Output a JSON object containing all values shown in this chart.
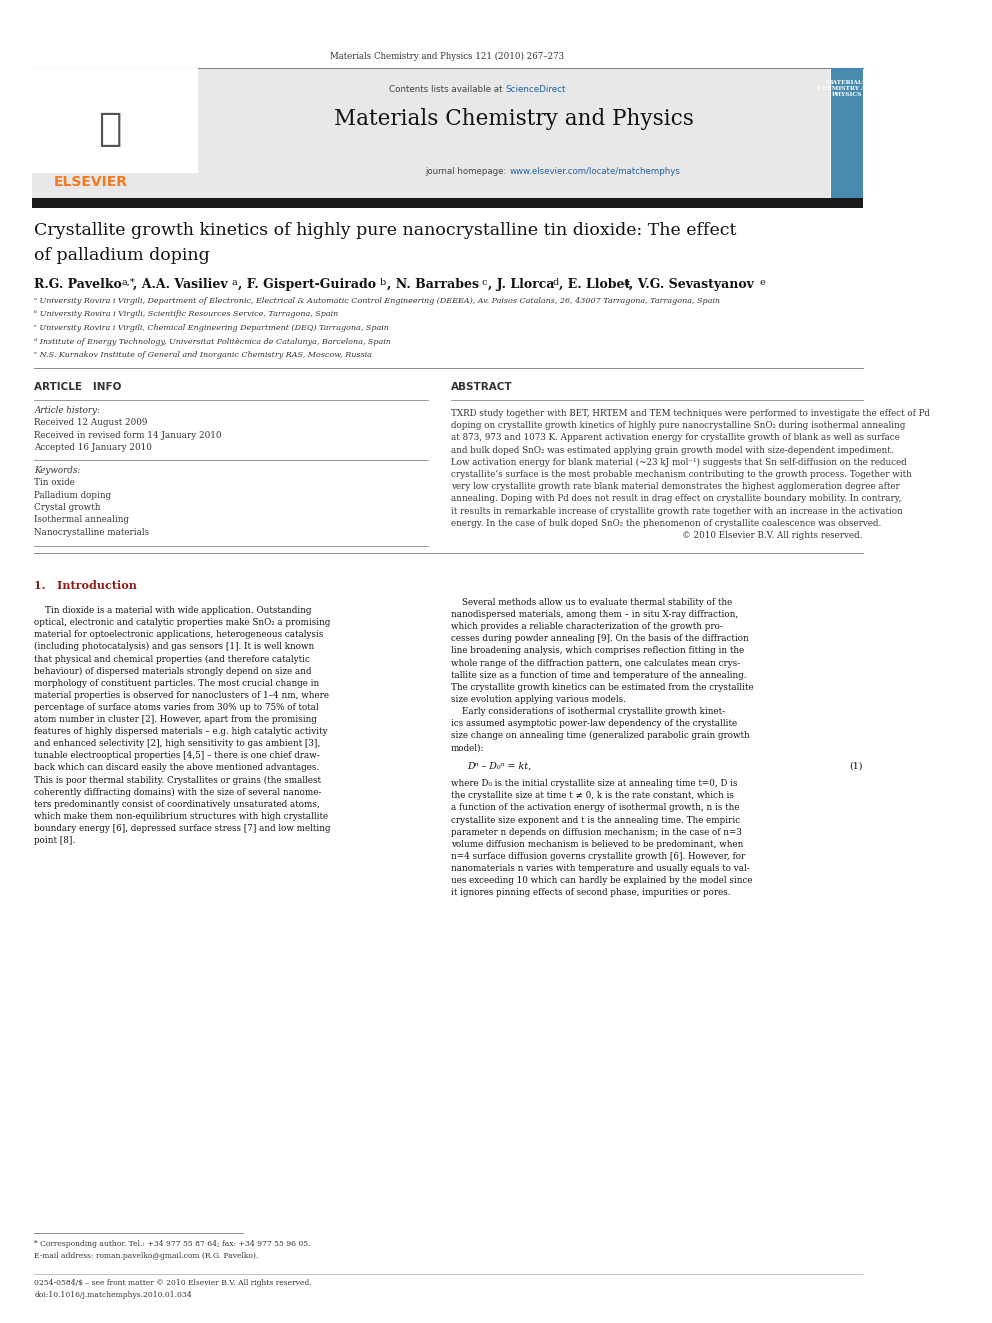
{
  "page_width": 9.92,
  "page_height": 13.23,
  "background_color": "#ffffff",
  "journal_header": "Materials Chemistry and Physics 121 (2010) 267–273",
  "journal_name": "Materials Chemistry and Physics",
  "contents_line_prefix": "Contents lists available at ",
  "contents_sciencedirect": "ScienceDirect",
  "journal_url_prefix": "journal homepage: ",
  "journal_url": "www.elsevier.com/locate/matchemphys",
  "elsevier_text": "ELSEVIER",
  "title_line1": "Crystallite growth kinetics of highly pure nanocrystalline tin dioxide: The effect",
  "title_line2": "of palladium doping",
  "affil_a": "ᵃ University Rovira i Virgili, Department of Electronic, Electrical & Automatic Control Engineering (DEEEA), Av. Paisos Catalans, 26, 43007 Tarragona, Tarragona, Spain",
  "affil_b": "ᵇ University Rovira i Virgili, Scientific Resources Service, Tarragona, Spain",
  "affil_c": "ᶜ University Rovira i Virgili, Chemical Engineering Department (DEQ) Tarragona, Spain",
  "affil_d": "ᵈ Institute of Energy Technology, Universitat Politècnica de Catalunya, Barcelona, Spain",
  "affil_e": "ᵉ N.S. Kurnakov Institute of General and Inorganic Chemistry RAS, Moscow, Russia",
  "article_info_title": "ARTICLE   INFO",
  "abstract_title": "ABSTRACT",
  "article_history_title": "Article history:",
  "received": "Received 12 August 2009",
  "received_revised": "Received in revised form 14 January 2010",
  "accepted": "Accepted 16 January 2010",
  "keywords_title": "Keywords:",
  "keywords": [
    "Tin oxide",
    "Palladium doping",
    "Crystal growth",
    "Isothermal annealing",
    "Nanocrystalline materials"
  ],
  "abstract_lines": [
    "TXRD study together with BET, HRTEM and TEM techniques were performed to investigate the effect of Pd",
    "doping on crystallite growth kinetics of highly pure nanocrystalline SnO₂ during isothermal annealing",
    "at 873, 973 and 1073 K. Apparent activation energy for crystallite growth of blank as well as surface",
    "and bulk doped SnO₂ was estimated applying grain growth model with size-dependent impediment.",
    "Low activation energy for blank material (~23 kJ mol⁻¹) suggests that Sn self-diffusion on the reduced",
    "crystallite’s surface is the most probable mechanism contributing to the growth process. Together with",
    "very low crystallite growth rate blank material demonstrates the highest agglomeration degree after",
    "annealing. Doping with Pd does not result in drag effect on crystallite boundary mobility. In contrary,",
    "it results in remarkable increase of crystallite growth rate together with an increase in the activation",
    "energy. In the case of bulk doped SnO₂ the phenomenon of crystallite coalescence was observed.",
    "© 2010 Elsevier B.V. All rights reserved."
  ],
  "intro_title": "1.   Introduction",
  "intro_left_lines": [
    "    Tin dioxide is a material with wide application. Outstanding",
    "optical, electronic and catalytic properties make SnO₂ a promising",
    "material for optoelectronic applications, heterogeneous catalysis",
    "(including photocatalysis) and gas sensors [1]. It is well known",
    "that physical and chemical properties (and therefore catalytic",
    "behaviour) of dispersed materials strongly depend on size and",
    "morphology of constituent particles. The most crucial change in",
    "material properties is observed for nanoclusters of 1–4 nm, where",
    "percentage of surface atoms varies from 30% up to 75% of total",
    "atom number in cluster [2]. However, apart from the promising",
    "features of highly dispersed materials – e.g. high catalytic activity",
    "and enhanced selectivity [2], high sensitivity to gas ambient [3],",
    "tunable electrooptical properties [4,5] – there is one chief draw-",
    "back which can discard easily the above mentioned advantages.",
    "This is poor thermal stability. Crystallites or grains (the smallest",
    "coherently diffracting domains) with the size of several nanome-",
    "ters predominantly consist of coordinatively unsaturated atoms,",
    "which make them non-equilibrium structures with high crystallite",
    "boundary energy [6], depressed surface stress [7] and low melting",
    "point [8]."
  ],
  "intro_right_lines": [
    "    Several methods allow us to evaluate thermal stability of the",
    "nanodispersed materials, among them – in situ X-ray diffraction,",
    "which provides a reliable characterization of the growth pro-",
    "cesses during powder annealing [9]. On the basis of the diffraction",
    "line broadening analysis, which comprises reflection fitting in the",
    "whole range of the diffraction pattern, one calculates mean crys-",
    "tallite size as a function of time and temperature of the annealing.",
    "The crystallite growth kinetics can be estimated from the crystallite",
    "size evolution applying various models.",
    "    Early considerations of isothermal crystallite growth kinet-",
    "ics assumed asymptotic power-law dependency of the crystallite",
    "size change on annealing time (generalized parabolic grain growth",
    "model):"
  ],
  "equation": "Dⁿ – D₀ⁿ = kt,",
  "equation_num": "(1)",
  "after_eq_lines": [
    "where D₀ is the initial crystallite size at annealing time t=0, D is",
    "the crystallite size at time t ≠ 0, k is the rate constant, which is",
    "a function of the activation energy of isothermal growth, n is the",
    "crystallite size exponent and t is the annealing time. The empiric",
    "parameter n depends on diffusion mechanism; in the case of n=3",
    "volume diffusion mechanism is believed to be predominant, when",
    "n=4 surface diffusion governs crystallite growth [6]. However, for",
    "nanomaterials n varies with temperature and usually equals to val-",
    "ues exceeding 10 which can hardly be explained by the model since",
    "it ignores pinning effects of second phase, impurities or pores."
  ],
  "footnote_star": "* Corresponding author. Tel.: +34 977 55 87 64; fax: +34 977 55 96 05.",
  "footnote_email": "E-mail address: roman.pavelko@gmail.com (R.G. Pavelko).",
  "bottom_line1": "0254-0584/$ – see front matter © 2010 Elsevier B.V. All rights reserved.",
  "bottom_line2": "doi:10.1016/j.matchemphys.2010.01.034",
  "header_bg": "#e8e8e8",
  "elsevier_orange": "#f47920",
  "sciencedirect_blue": "#2060a0",
  "url_blue": "#2060a0",
  "intro_blue": "#8b1a1a",
  "dark_bar": "#1a1a1a",
  "cover_bg": "#4a8ab0",
  "line_color": "#888888"
}
